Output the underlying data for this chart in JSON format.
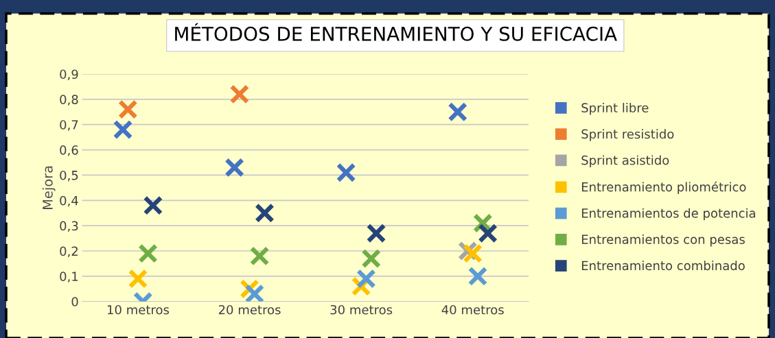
{
  "chart_data": {
    "type": "scatter",
    "title": "MÉTODOS DE ENTRENAMIENTO Y SU EFICACIA",
    "ylabel": "Mejora",
    "categories": [
      "10 metros",
      "20 metros",
      "30 metros",
      "40 metros"
    ],
    "series": [
      {
        "name": "Sprint libre",
        "color": "#4472c4",
        "values": [
          0.68,
          0.53,
          0.51,
          0.75
        ]
      },
      {
        "name": "Sprint resistido",
        "color": "#ed7d31",
        "values": [
          0.76,
          0.82,
          null,
          null
        ]
      },
      {
        "name": "Sprint asistido",
        "color": "#a5a5a5",
        "values": [
          null,
          null,
          null,
          0.2
        ]
      },
      {
        "name": "Entrenamiento pliométrico",
        "color": "#ffc000",
        "values": [
          0.09,
          0.05,
          0.06,
          0.19
        ]
      },
      {
        "name": "Entrenamientos de potencia",
        "color": "#5b9bd5",
        "values": [
          0.0,
          0.03,
          0.09,
          0.1
        ]
      },
      {
        "name": "Entrenamientos con pesas",
        "color": "#70ad47",
        "values": [
          0.19,
          0.18,
          0.17,
          0.31
        ]
      },
      {
        "name": "Entrenamiento combinado",
        "color": "#264478",
        "values": [
          0.38,
          0.35,
          0.27,
          0.27
        ]
      }
    ],
    "ylim": [
      0,
      0.9
    ],
    "yticks": [
      0,
      {
        "value": 0.1,
        "label": "0,1"
      },
      {
        "value": 0.2,
        "label": "0,2"
      },
      {
        "value": 0.3,
        "label": "0,3"
      },
      {
        "value": 0.4,
        "label": "0,4"
      },
      {
        "value": 0.5,
        "label": "0,5"
      },
      {
        "value": 0.6,
        "label": "0,6"
      },
      {
        "value": 0.7,
        "label": "0,7"
      },
      {
        "value": 0.8,
        "label": "0,8"
      },
      {
        "value": 0.9,
        "label": "0,9"
      }
    ],
    "grid": "y",
    "legend": "right",
    "marker": "cross"
  }
}
